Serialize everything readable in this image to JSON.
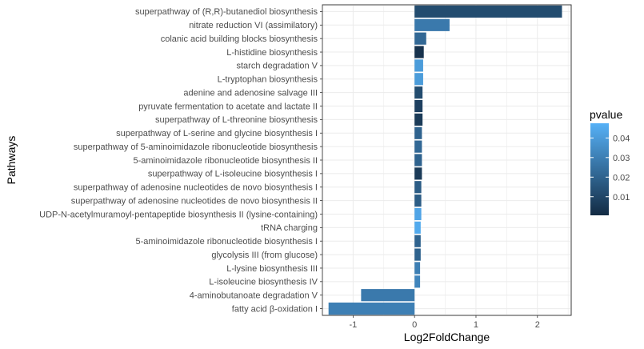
{
  "chart_data": {
    "type": "bar",
    "orientation": "horizontal",
    "xlabel": "Log2FoldChange",
    "ylabel": "Pathways",
    "xlim": [
      -1.5,
      2.55
    ],
    "xticks": [
      -1,
      0,
      1,
      2
    ],
    "grid": true,
    "legend": {
      "title": "pvalue",
      "position": "right",
      "range": [
        0.0005,
        0.0475
      ],
      "ticks": [
        0.01,
        0.02,
        0.03,
        0.04
      ],
      "tick_labels": [
        "0.01",
        "0.02",
        "0.03",
        "0.04"
      ],
      "color_low": "#132B43",
      "color_high": "#56B1F7"
    },
    "categories": [
      "superpathway of (R,R)-butanediol biosynthesis",
      "nitrate reduction VI (assimilatory)",
      "colanic acid building blocks biosynthesis",
      "L-histidine biosynthesis",
      "starch degradation V",
      "L-tryptophan biosynthesis",
      "adenine and adenosine salvage III",
      "pyruvate fermentation to acetate and lactate II",
      "superpathway of L-threonine biosynthesis",
      "superpathway of L-serine and glycine biosynthesis I",
      "superpathway of 5-aminoimidazole ribonucleotide biosynthesis",
      "5-aminoimidazole ribonucleotide biosynthesis II",
      "superpathway of L-isoleucine biosynthesis I",
      "superpathway of adenosine nucleotides de novo biosynthesis I",
      "superpathway of adenosine nucleotides de novo biosynthesis II",
      "UDP-N-acetylmuramoyl-pentapeptide biosynthesis II (lysine-containing)",
      "tRNA charging",
      "5-aminoimidazole ribonucleotide biosynthesis I",
      "glycolysis III (from glucose)",
      "L-lysine biosynthesis III",
      "L-isoleucine biosynthesis IV",
      "4-aminobutanoate degradation V",
      "fatty acid &beta;-oxidation I"
    ],
    "values": [
      2.4,
      0.57,
      0.19,
      0.15,
      0.14,
      0.14,
      0.13,
      0.13,
      0.13,
      0.12,
      0.12,
      0.12,
      0.12,
      0.11,
      0.11,
      0.11,
      0.1,
      0.1,
      0.1,
      0.09,
      0.09,
      -0.87,
      -1.4
    ],
    "pvalues": [
      0.012,
      0.028,
      0.022,
      0.003,
      0.04,
      0.04,
      0.012,
      0.008,
      0.006,
      0.02,
      0.022,
      0.02,
      0.006,
      0.018,
      0.018,
      0.043,
      0.045,
      0.02,
      0.02,
      0.03,
      0.032,
      0.028,
      0.03
    ]
  }
}
